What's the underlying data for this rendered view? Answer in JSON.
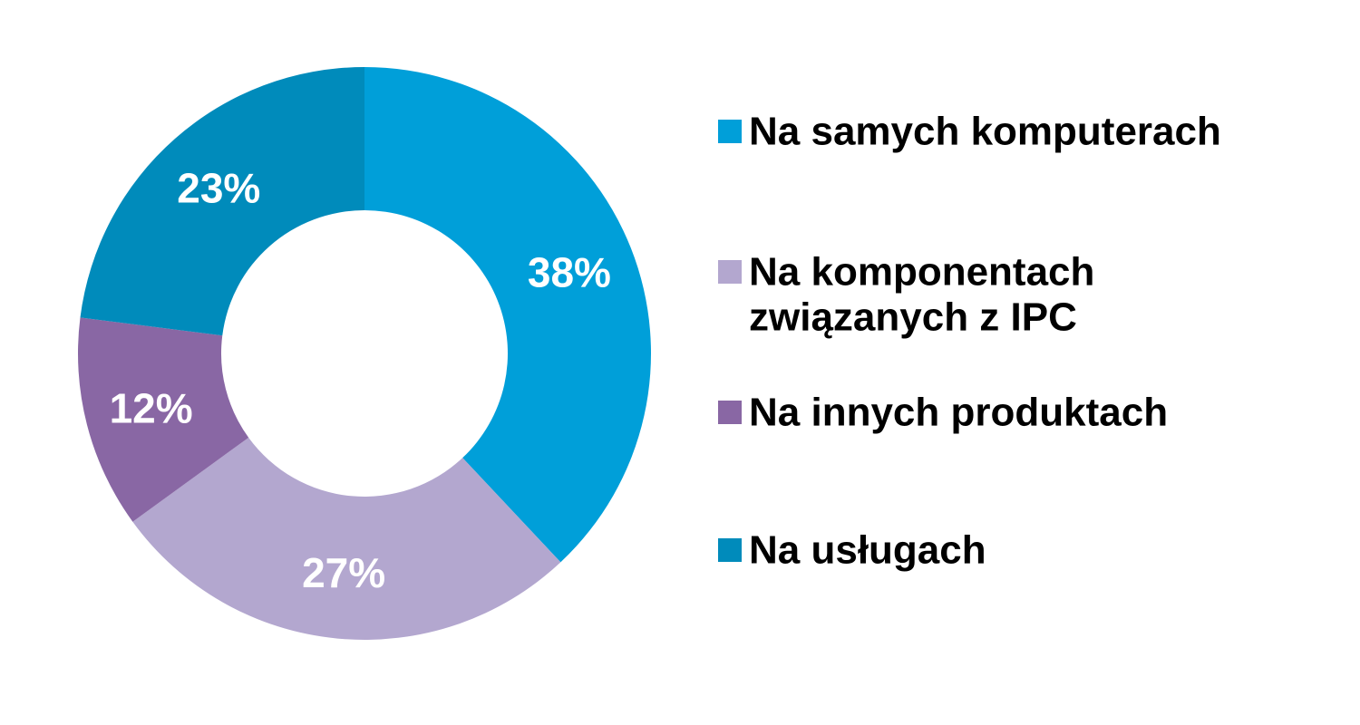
{
  "chart_data": {
    "type": "pie",
    "variant": "donut",
    "title": "",
    "start_angle_deg": 0,
    "direction": "clockwise",
    "legend_position": "right",
    "slices": [
      {
        "label_lines": [
          "Na samych komputerach"
        ],
        "value": 38,
        "value_label": "38%",
        "color": "#009fd9"
      },
      {
        "label_lines": [
          "Na komponentach",
          "związanych z IPC"
        ],
        "value": 27,
        "value_label": "27%",
        "color": "#b3a7cf"
      },
      {
        "label_lines": [
          "Na innych produktach"
        ],
        "value": 12,
        "value_label": "12%",
        "color": "#8967a4"
      },
      {
        "label_lines": [
          "Na usługach"
        ],
        "value": 23,
        "value_label": "23%",
        "color": "#008bbb"
      }
    ]
  }
}
